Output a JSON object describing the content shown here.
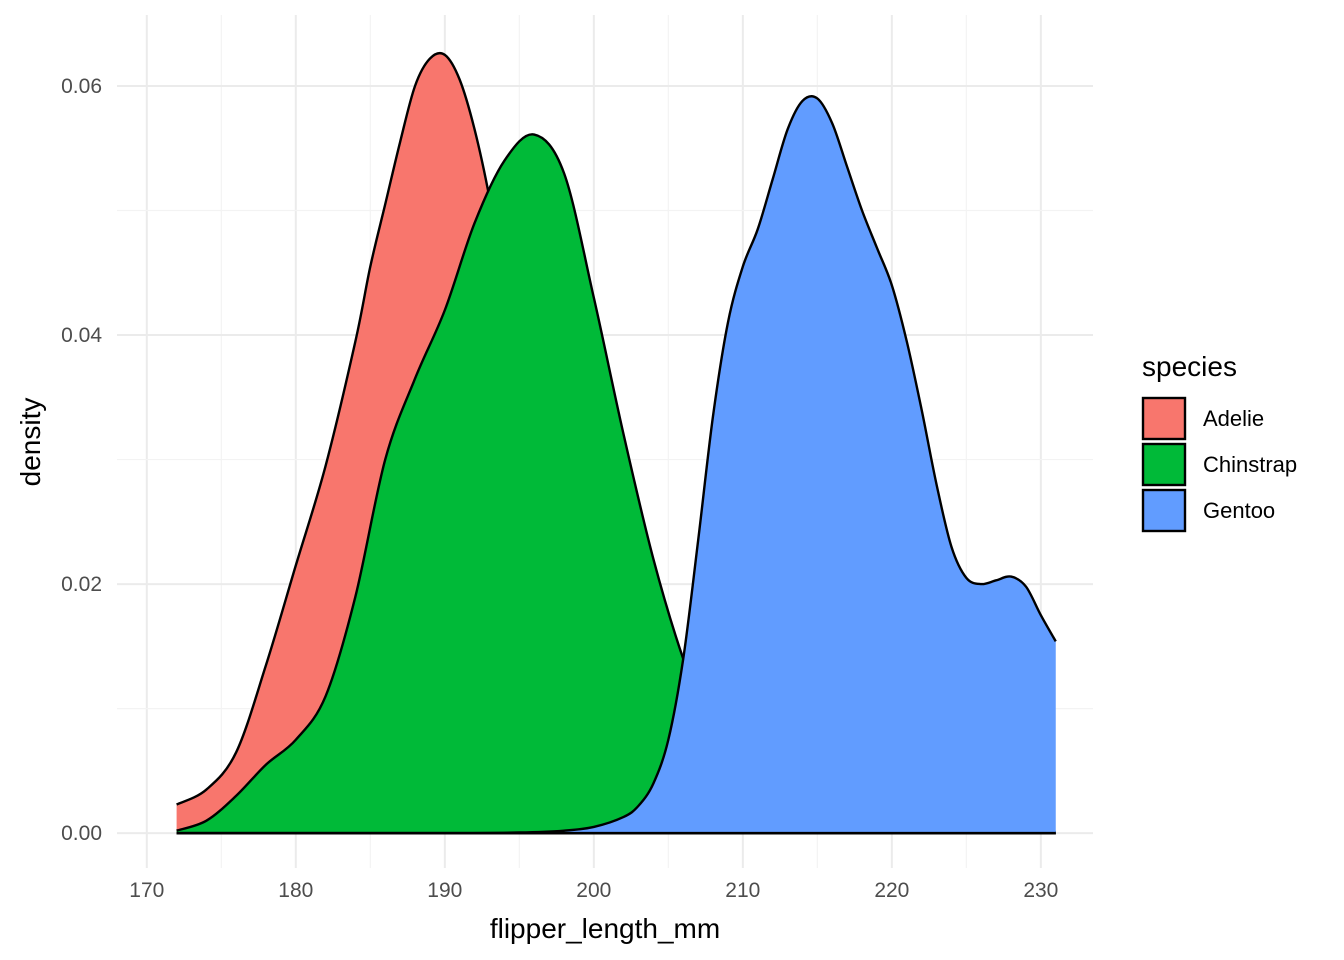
{
  "chart_data": {
    "type": "area",
    "chart_subtype": "density",
    "xlabel": "flipper_length_mm",
    "ylabel": "density",
    "xlim": [
      168,
      233.5
    ],
    "ylim": [
      -0.0028,
      0.0657
    ],
    "x_ticks": [
      170,
      180,
      190,
      200,
      210,
      220,
      230
    ],
    "x_tick_labels": [
      "170",
      "180",
      "190",
      "200",
      "210",
      "220",
      "230"
    ],
    "y_ticks": [
      0,
      0.02,
      0.04,
      0.06
    ],
    "y_tick_labels": [
      "0.00",
      "0.02",
      "0.04",
      "0.06"
    ],
    "grid": true,
    "legend": {
      "title": "species",
      "position": "right"
    },
    "series": [
      {
        "name": "Adelie",
        "color": "#F8766D",
        "x": [
          172,
          174,
          176,
          178,
          180,
          182,
          184,
          185,
          186,
          187,
          188,
          189,
          190,
          191,
          192,
          193,
          194,
          195,
          196,
          197,
          198,
          200,
          202,
          204,
          206,
          208,
          210,
          212,
          214,
          216,
          218,
          220,
          222,
          224,
          226,
          228,
          230,
          231
        ],
        "y": [
          0.0023,
          0.0035,
          0.0065,
          0.0135,
          0.0215,
          0.0295,
          0.0395,
          0.0455,
          0.0505,
          0.0555,
          0.06,
          0.0622,
          0.0625,
          0.0605,
          0.0565,
          0.051,
          0.044,
          0.037,
          0.0305,
          0.025,
          0.02,
          0.0125,
          0.007,
          0.0035,
          0.0015,
          0.0006,
          0.0003,
          0.0002,
          0.0001,
          0.0001,
          0.0001,
          0.0001,
          0.0001,
          0.0001,
          0.0001,
          0.0001,
          0.0001,
          0.0001
        ]
      },
      {
        "name": "Chinstrap",
        "color": "#00BA38",
        "x": [
          172,
          174,
          176,
          178,
          180,
          182,
          184,
          186,
          188,
          190,
          192,
          194,
          196,
          198,
          200,
          202,
          204,
          206,
          208,
          210,
          212,
          214,
          216,
          218,
          220,
          222,
          224,
          226,
          228,
          230,
          231
        ],
        "y": [
          0.0002,
          0.001,
          0.003,
          0.0055,
          0.0075,
          0.011,
          0.019,
          0.03,
          0.0365,
          0.042,
          0.049,
          0.054,
          0.0561,
          0.053,
          0.043,
          0.032,
          0.022,
          0.014,
          0.008,
          0.004,
          0.002,
          0.0008,
          0.0003,
          0.0001,
          0.0,
          0.0,
          0.0,
          0.0,
          0.0,
          0.0,
          0.0
        ]
      },
      {
        "name": "Gentoo",
        "color": "#619CFF",
        "x": [
          172,
          180,
          190,
          195,
          198,
          200,
          202,
          203,
          204,
          205,
          206,
          207,
          208,
          209,
          210,
          211,
          212,
          213,
          214,
          215,
          216,
          217,
          218,
          219,
          220,
          221,
          222,
          223,
          224,
          225,
          226,
          227,
          228,
          229,
          230,
          231
        ],
        "y": [
          0,
          0,
          0,
          5e-05,
          0.0002,
          0.0005,
          0.0013,
          0.0022,
          0.004,
          0.0075,
          0.014,
          0.0235,
          0.0335,
          0.041,
          0.0455,
          0.0485,
          0.0525,
          0.0565,
          0.0588,
          0.059,
          0.057,
          0.0535,
          0.05,
          0.047,
          0.044,
          0.0395,
          0.034,
          0.028,
          0.023,
          0.0205,
          0.02,
          0.0203,
          0.0206,
          0.0198,
          0.0175,
          0.0154
        ]
      }
    ]
  }
}
